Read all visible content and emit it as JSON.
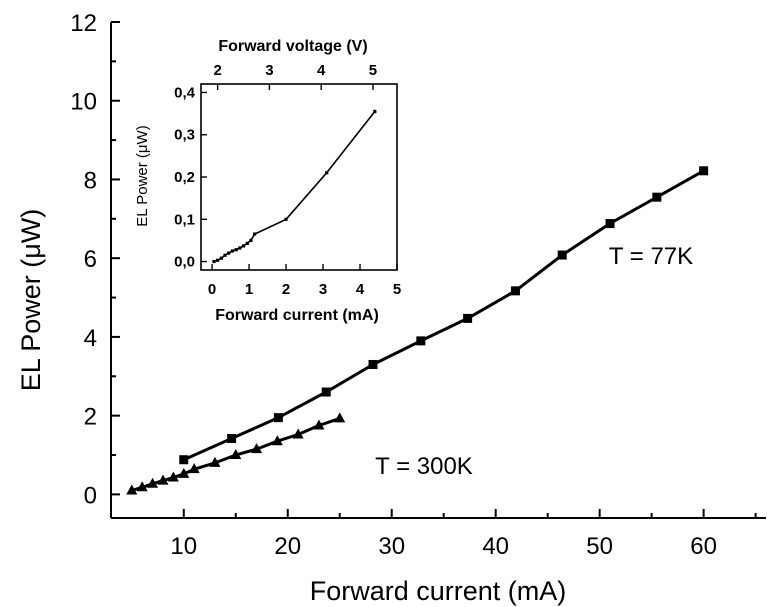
{
  "chart_data": {
    "type": "line",
    "xlabel": "Forward current (mA)",
    "ylabel": "EL Power (μW)",
    "xlim": [
      3,
      66
    ],
    "ylim": [
      -0.6,
      12
    ],
    "xticks": [
      10,
      20,
      30,
      40,
      50,
      60
    ],
    "yticks": [
      0,
      2,
      4,
      6,
      8,
      10,
      12
    ],
    "grid": false,
    "series": [
      {
        "name": "T = 77K",
        "marker": "square",
        "x": [
          10,
          14.6,
          19.1,
          23.7,
          28.2,
          32.8,
          37.3,
          41.9,
          46.4,
          51.0,
          55.5,
          60.0
        ],
        "y": [
          0.88,
          1.42,
          1.95,
          2.6,
          3.3,
          3.9,
          4.47,
          5.17,
          6.08,
          6.88,
          7.55,
          8.22
        ]
      },
      {
        "name": "T = 300K",
        "marker": "triangle",
        "x": [
          5,
          6,
          7,
          8,
          9,
          10,
          11,
          13,
          15,
          17,
          19,
          21,
          23,
          25
        ],
        "y": [
          0.1,
          0.18,
          0.27,
          0.35,
          0.43,
          0.52,
          0.64,
          0.8,
          1.0,
          1.15,
          1.35,
          1.52,
          1.75,
          1.93
        ]
      }
    ],
    "annotations": [
      {
        "text": "T = 77K"
      },
      {
        "text": "T = 300K"
      }
    ],
    "inset": {
      "type": "line",
      "xlabel": "Forward current (mA)",
      "ylabel": "EL Power (μW)",
      "top_xlabel": "Forward voltage (V)",
      "xlim": [
        -0.3,
        5
      ],
      "ylim": [
        -0.02,
        0.42
      ],
      "xticks": [
        0,
        1,
        2,
        3,
        4,
        5
      ],
      "yticks": [
        0.0,
        0.1,
        0.2,
        0.3,
        0.4
      ],
      "xtick_labels": [
        "0",
        "1",
        "2",
        "3",
        "4",
        "5"
      ],
      "ytick_labels": [
        "0,0",
        "0,1",
        "0,2",
        "0,3",
        "0,4"
      ],
      "top_ticks_current": [
        0.15,
        1.55,
        2.95,
        4.35
      ],
      "top_tick_labels": [
        "2",
        "3",
        "4",
        "5"
      ],
      "series": [
        {
          "name": "",
          "marker": "square",
          "x": [
            0.05,
            0.15,
            0.25,
            0.35,
            0.45,
            0.55,
            0.65,
            0.75,
            0.85,
            0.95,
            1.05,
            1.15,
            2.0,
            3.1,
            4.4
          ],
          "y": [
            0.0,
            0.003,
            0.008,
            0.015,
            0.02,
            0.025,
            0.028,
            0.032,
            0.037,
            0.043,
            0.05,
            0.065,
            0.1,
            0.21,
            0.355
          ]
        }
      ]
    }
  }
}
